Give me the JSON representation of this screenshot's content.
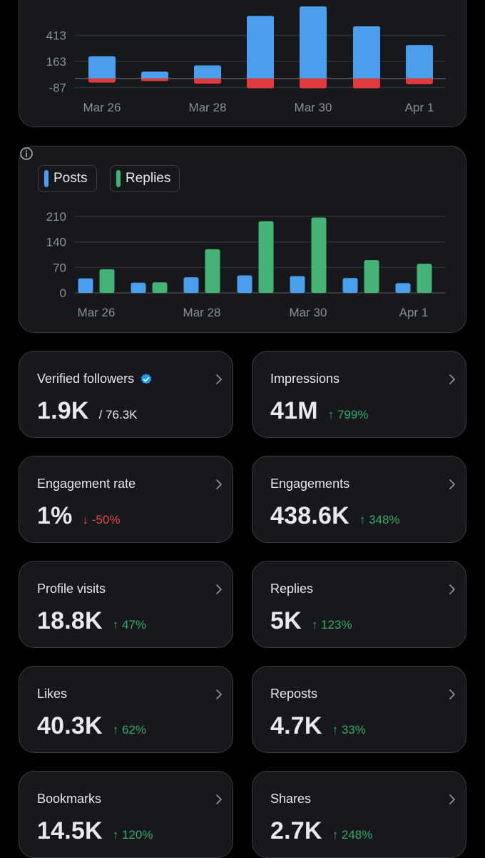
{
  "colors": {
    "posts": "#4a9eec",
    "replies": "#45b376",
    "negative": "#e0393e",
    "up": "#36a96b",
    "down": "#e5484d",
    "verified": "#1d9bf0"
  },
  "chart_data": [
    {
      "type": "bar",
      "ticks_y": [
        "413",
        "163",
        "-87"
      ],
      "y_tick_values": [
        413,
        163,
        -87
      ],
      "x_tick_labels": [
        "Mar 26",
        "Mar 28",
        "Mar 30",
        "Apr 1"
      ],
      "categories": [
        "Mar 26",
        "Mar 27",
        "Mar 28",
        "Mar 29",
        "Mar 30",
        "Mar 31",
        "Apr 1"
      ],
      "series": [
        {
          "values": [
            213,
            65,
            125,
            600,
            690,
            500,
            320
          ]
        },
        {
          "values": [
            -40,
            -25,
            -50,
            -95,
            -95,
            -95,
            -55
          ]
        }
      ]
    },
    {
      "type": "bar",
      "ticks_y": [
        "210",
        "140",
        "70",
        "0"
      ],
      "y_tick_values": [
        210,
        140,
        70,
        0
      ],
      "x_tick_labels": [
        "Mar 26",
        "Mar 28",
        "Mar 30",
        "Apr 1"
      ],
      "categories": [
        "Mar 26",
        "Mar 27",
        "Mar 28",
        "Mar 29",
        "Mar 30",
        "Mar 31",
        "Apr 1"
      ],
      "legend": [
        "Posts",
        "Replies"
      ],
      "series": [
        {
          "name": "Posts",
          "values": [
            40,
            28,
            43,
            48,
            46,
            41,
            27
          ]
        },
        {
          "name": "Replies",
          "values": [
            65,
            29,
            120,
            197,
            207,
            90,
            80
          ]
        }
      ]
    }
  ],
  "metrics": [
    {
      "title": "Verified followers",
      "value": "1.9K",
      "sub": "/ 76.3K",
      "delta": "",
      "verified": true
    },
    {
      "title": "Impressions",
      "value": "41M",
      "delta": "↑ 799%",
      "dir": "up"
    },
    {
      "title": "Engagement rate",
      "value": "1%",
      "delta": "↓ -50%",
      "dir": "down"
    },
    {
      "title": "Engagements",
      "value": "438.6K",
      "delta": "↑ 348%",
      "dir": "up"
    },
    {
      "title": "Profile visits",
      "value": "18.8K",
      "delta": "↑ 47%",
      "dir": "up"
    },
    {
      "title": "Replies",
      "value": "5K",
      "delta": "↑ 123%",
      "dir": "up"
    },
    {
      "title": "Likes",
      "value": "40.3K",
      "delta": "↑ 62%",
      "dir": "up"
    },
    {
      "title": "Reposts",
      "value": "4.7K",
      "delta": "↑ 33%",
      "dir": "up"
    },
    {
      "title": "Bookmarks",
      "value": "14.5K",
      "delta": "↑ 120%",
      "dir": "up"
    },
    {
      "title": "Shares",
      "value": "2.7K",
      "delta": "↑ 248%",
      "dir": "up"
    }
  ],
  "icons": {
    "info": "info-icon",
    "chevron": "chevron-right-icon",
    "verified": "verified-badge-icon"
  }
}
